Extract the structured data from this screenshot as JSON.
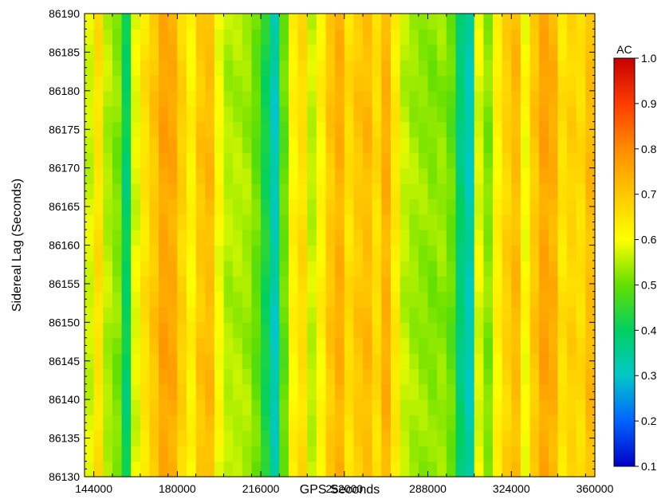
{
  "chart_data": {
    "type": "heatmap",
    "title": "",
    "xlabel": "GPS Seconds",
    "ylabel": "Sidereal Lag (Seconds)",
    "xlim": [
      140000,
      360000
    ],
    "ylim": [
      86130,
      86190
    ],
    "x_ticks": [
      144000,
      180000,
      216000,
      252000,
      288000,
      324000,
      360000
    ],
    "y_ticks": [
      86130,
      86135,
      86140,
      86145,
      86150,
      86155,
      86160,
      86165,
      86170,
      86175,
      86180,
      86185,
      86190
    ],
    "colorbar": {
      "label": "AC",
      "range": [
        0.1,
        1.0
      ],
      "ticks": [
        0.1,
        0.2,
        0.3,
        0.4,
        0.5,
        0.6,
        0.7,
        0.8,
        0.9,
        1.0
      ],
      "tick_labels": [
        "0.1",
        "0.2",
        "0.3",
        "0.4",
        "0.5",
        "0.6",
        "0.7",
        "0.8",
        "0.9",
        "1.0"
      ],
      "colors": [
        "#0000c8",
        "#0064ff",
        "#00c8c8",
        "#00d060",
        "#64e000",
        "#ffff00",
        "#ffc800",
        "#ff8c00",
        "#ff3c00",
        "#c80000"
      ]
    },
    "x_step": 4000,
    "x_values": [
      140000,
      144000,
      148000,
      152000,
      156000,
      160000,
      164000,
      168000,
      172000,
      176000,
      180000,
      184000,
      188000,
      192000,
      196000,
      200000,
      204000,
      208000,
      212000,
      216000,
      220000,
      224000,
      228000,
      232000,
      236000,
      240000,
      244000,
      248000,
      252000,
      256000,
      260000,
      264000,
      268000,
      272000,
      276000,
      280000,
      284000,
      288000,
      292000,
      296000,
      300000,
      304000,
      308000,
      312000,
      316000,
      320000,
      324000,
      328000,
      332000,
      336000,
      340000,
      344000,
      348000,
      352000,
      356000
    ],
    "column_values": [
      0.57,
      0.65,
      0.55,
      0.52,
      0.4,
      0.58,
      0.65,
      0.7,
      0.76,
      0.75,
      0.68,
      0.62,
      0.7,
      0.72,
      0.6,
      0.55,
      0.55,
      0.54,
      0.5,
      0.42,
      0.32,
      0.5,
      0.62,
      0.66,
      0.56,
      0.62,
      0.7,
      0.74,
      0.66,
      0.7,
      0.72,
      0.66,
      0.74,
      0.64,
      0.56,
      0.54,
      0.53,
      0.52,
      0.53,
      0.5,
      0.38,
      0.32,
      0.58,
      0.52,
      0.62,
      0.68,
      0.72,
      0.6,
      0.7,
      0.76,
      0.74,
      0.65,
      0.68,
      0.66,
      0.72
    ],
    "row_variation": "nearly constant along Sidereal Lag"
  }
}
